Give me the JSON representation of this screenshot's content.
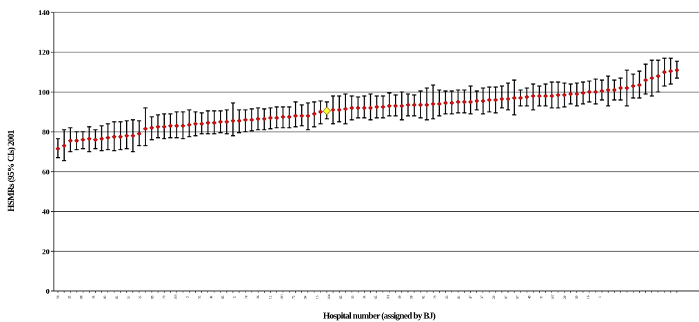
{
  "chart_data": {
    "type": "scatter",
    "title": "",
    "xlabel": "Hospital number (assigned by BJ)",
    "ylabel": "HSMRs (95% CIs) 2001",
    "ylim": [
      0,
      140
    ],
    "yticks": [
      0,
      20,
      40,
      60,
      80,
      100,
      120,
      140
    ],
    "grid": "horizontal",
    "legend": "none",
    "marker_color": "#d01010",
    "highlight_color": "#ffff33",
    "highlight_label": "94",
    "tick_labels": [
      "56",
      "35",
      "68",
      "34",
      "83",
      "61",
      "51",
      "25",
      "89",
      "70",
      "103",
      "3",
      "52",
      "44",
      "85",
      "5",
      "78",
      "36",
      "12",
      "100",
      "72",
      "94",
      "13",
      "104",
      "65",
      "33",
      "34",
      "95",
      "101",
      "39",
      "58",
      "62",
      "79",
      "23",
      "61",
      "47",
      "37",
      "20",
      "67",
      "97",
      "49",
      "31",
      "107",
      "29",
      "99",
      "16",
      "1"
    ],
    "series": [
      {
        "name": "",
        "y": [
          71.5,
          73,
          75.5,
          75.5,
          76,
          76.5,
          76,
          76.5,
          77,
          77.5,
          77.5,
          78,
          78,
          79,
          81.5,
          82,
          82.5,
          82.5,
          83,
          83,
          83,
          83.5,
          84,
          84,
          84.5,
          84.5,
          85,
          85,
          85.5,
          85.5,
          86,
          86,
          86.5,
          86.5,
          87,
          87,
          87.5,
          87.5,
          88,
          88,
          88,
          89,
          90,
          90.5,
          91,
          91,
          91.5,
          92,
          92,
          92,
          92,
          92.5,
          92.5,
          93,
          93,
          93,
          93.5,
          93.5,
          93.5,
          93.5,
          94,
          94,
          94.5,
          94.5,
          95,
          95,
          95,
          95.5,
          95.5,
          96,
          96,
          96.5,
          96.5,
          97,
          97,
          97.5,
          98,
          98,
          98,
          98,
          98.5,
          98.5,
          99,
          99,
          99.5,
          100,
          100,
          100.5,
          101,
          101,
          102,
          102,
          103,
          103.5,
          106,
          107,
          108,
          110,
          110.5,
          111
        ],
        "lower": [
          67,
          65.5,
          70,
          71,
          71.5,
          70,
          71.5,
          70.5,
          71,
          70.5,
          71,
          71.5,
          70,
          73,
          73,
          76,
          77,
          76.5,
          77,
          77,
          76.5,
          77.5,
          78,
          79,
          79,
          79,
          79.5,
          79,
          78,
          79.5,
          80,
          80.5,
          81,
          81,
          81.5,
          82,
          82,
          82,
          82.5,
          83,
          81,
          82.5,
          84,
          86.5,
          84,
          85,
          84,
          86,
          87,
          87,
          86,
          87,
          87,
          88,
          88,
          86,
          88,
          88,
          87,
          86,
          86.5,
          88,
          89,
          89,
          89.5,
          89.5,
          89,
          91,
          89,
          90,
          89.5,
          92,
          91,
          88.5,
          93,
          93,
          91,
          93,
          93,
          92,
          92,
          92.5,
          94,
          93,
          94,
          95,
          94,
          96,
          93,
          96,
          96,
          93,
          97,
          97,
          99,
          98,
          100,
          103,
          104,
          107
        ],
        "upper": [
          76.5,
          81,
          82,
          80,
          80,
          82.5,
          81,
          83,
          84,
          85,
          85,
          85.5,
          86,
          85.5,
          92,
          87.5,
          88.5,
          89,
          89,
          90,
          90,
          91,
          90,
          89.5,
          90.5,
          90.5,
          90.5,
          91,
          94.5,
          91,
          91,
          91.5,
          92,
          91.5,
          92,
          92.5,
          92.5,
          92.5,
          95,
          93.5,
          94.5,
          95,
          95.5,
          95,
          98,
          98,
          99,
          98,
          97.5,
          98,
          99,
          98,
          98,
          99.5,
          98.5,
          100,
          99,
          98.5,
          100.5,
          102,
          103.5,
          101,
          100.5,
          100.5,
          101,
          101,
          103,
          100.5,
          102,
          102.5,
          102.5,
          103,
          104.5,
          106,
          101,
          102,
          104,
          103,
          104,
          105,
          105,
          104.5,
          104,
          104.5,
          105,
          105.5,
          106.5,
          106,
          108,
          106,
          107,
          111,
          109,
          110.5,
          114,
          116,
          116,
          117,
          117,
          115.5
        ]
      }
    ]
  }
}
